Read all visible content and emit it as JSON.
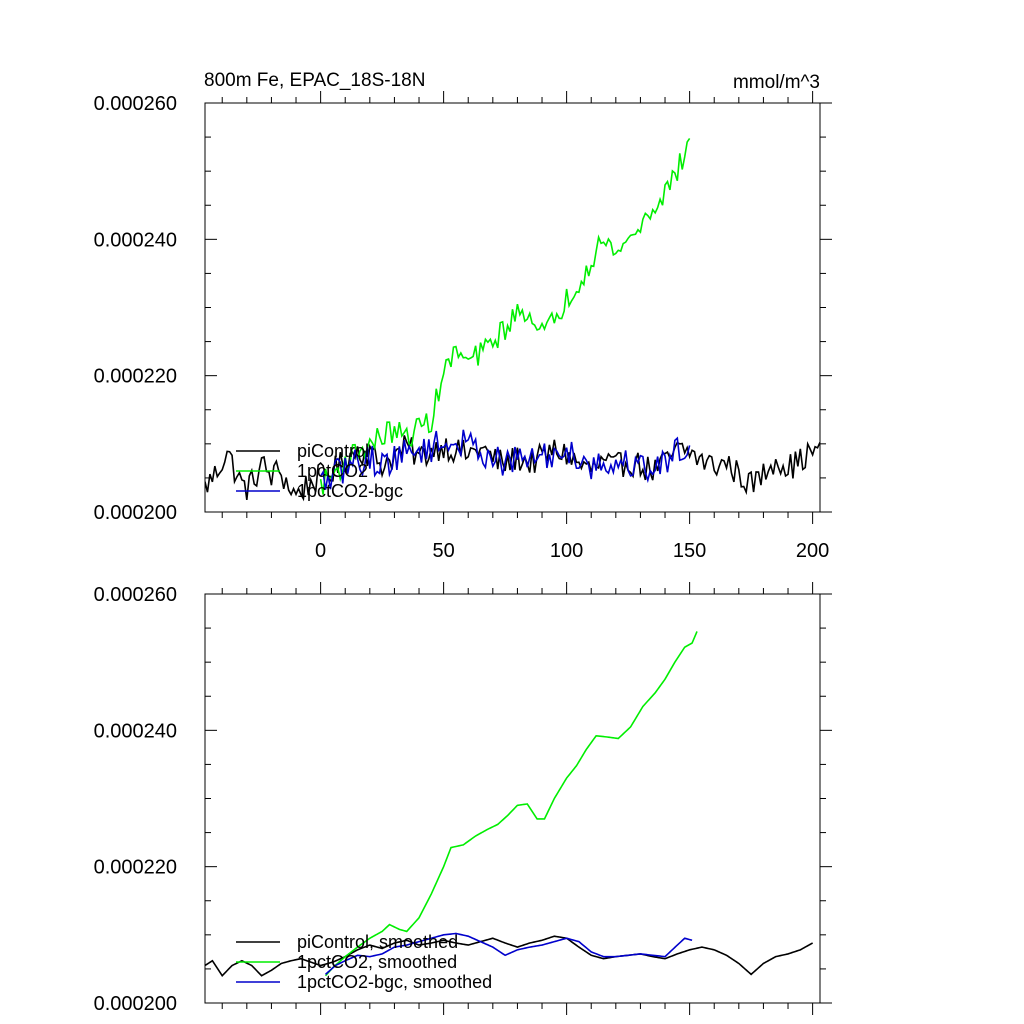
{
  "figure": {
    "title_left": "800m Fe, EPAC_18S-18N",
    "title_right": "mmol/m^3"
  },
  "colors": {
    "piControl": "#000000",
    "1pctCO2": "#00ee00",
    "1pctCO2-bgc": "#0000cc"
  },
  "chart_data": [
    {
      "type": "line",
      "title": "800m Fe, EPAC_18S-18N",
      "units": "mmol/m^3",
      "xlim": [
        -47,
        203
      ],
      "ylim": [
        0.0002,
        0.00026
      ],
      "xticks": [
        0,
        50,
        100,
        150,
        200
      ],
      "xtick_labels": [
        "0",
        "50",
        "100",
        "150",
        "200"
      ],
      "yticks": [
        0.0002,
        0.00022,
        0.00024,
        0.00026
      ],
      "ytick_labels": [
        "0.000200",
        "0.000220",
        "0.000240",
        "0.000260"
      ],
      "legend": [
        "piControl",
        "1pctCO2",
        "1pctCO2-bgc"
      ],
      "legend_position": "lower-left",
      "series": [
        {
          "name": "piControl",
          "anchors": [
            [
              -47,
              0.0002036
            ],
            [
              -42,
              0.000206
            ],
            [
              -38,
              0.000209
            ],
            [
              -35,
              0.0002062
            ],
            [
              -32,
              0.000204
            ],
            [
              -30,
              0.0002035
            ],
            [
              -27,
              0.0002048
            ],
            [
              -24,
              0.000207
            ],
            [
              -20,
              0.0002052
            ],
            [
              -17,
              0.0002062
            ],
            [
              -13,
              0.0002038
            ],
            [
              -10,
              0.0002025
            ],
            [
              -5,
              0.000204
            ],
            [
              0,
              0.0002052
            ],
            [
              5,
              0.000206
            ],
            [
              10,
              0.0002075
            ],
            [
              15,
              0.0002092
            ],
            [
              20,
              0.0002085
            ],
            [
              25,
              0.000207
            ],
            [
              30,
              0.0002082
            ],
            [
              35,
              0.0002096
            ],
            [
              40,
              0.000208
            ],
            [
              45,
              0.000209
            ],
            [
              50,
              0.0002098
            ],
            [
              55,
              0.000209
            ],
            [
              60,
              0.0002084
            ],
            [
              65,
              0.0002095
            ],
            [
              70,
              0.0002078
            ],
            [
              75,
              0.000207
            ],
            [
              80,
              0.000208
            ],
            [
              85,
              0.0002072
            ],
            [
              90,
              0.000208
            ],
            [
              95,
              0.000209
            ],
            [
              100,
              0.0002085
            ],
            [
              105,
              0.000207
            ],
            [
              110,
              0.0002062
            ],
            [
              115,
              0.0002072
            ],
            [
              120,
              0.0002065
            ],
            [
              125,
              0.0002075
            ],
            [
              130,
              0.0002068
            ],
            [
              135,
              0.000206
            ],
            [
              140,
              0.0002072
            ],
            [
              145,
              0.000209
            ],
            [
              150,
              0.0002088
            ],
            [
              155,
              0.0002075
            ],
            [
              160,
              0.0002068
            ],
            [
              165,
              0.0002072
            ],
            [
              170,
              0.0002055
            ],
            [
              175,
              0.000204
            ],
            [
              180,
              0.0002055
            ],
            [
              185,
              0.000208
            ],
            [
              190,
              0.0002065
            ],
            [
              195,
              0.0002075
            ],
            [
              200,
              0.000209
            ],
            [
              203,
              0.0002085
            ]
          ],
          "noise": 2e-06
        },
        {
          "name": "1pctCO2",
          "anchors": [
            [
              0,
              0.000204
            ],
            [
              5,
              0.0002055
            ],
            [
              10,
              0.0002072
            ],
            [
              15,
              0.000209
            ],
            [
              20,
              0.0002098
            ],
            [
              25,
              0.0002112
            ],
            [
              30,
              0.000212
            ],
            [
              35,
              0.0002108
            ],
            [
              40,
              0.0002125
            ],
            [
              45,
              0.0002135
            ],
            [
              50,
              0.0002205
            ],
            [
              55,
              0.0002235
            ],
            [
              60,
              0.000222
            ],
            [
              65,
              0.0002232
            ],
            [
              70,
              0.000225
            ],
            [
              75,
              0.000227
            ],
            [
              80,
              0.000229
            ],
            [
              85,
              0.00023
            ],
            [
              88,
              0.0002262
            ],
            [
              92,
              0.0002265
            ],
            [
              100,
              0.0002312
            ],
            [
              105,
              0.0002338
            ],
            [
              110,
              0.000237
            ],
            [
              113,
              0.0002395
            ],
            [
              118,
              0.0002388
            ],
            [
              122,
              0.0002385
            ],
            [
              130,
              0.000242
            ],
            [
              135,
              0.0002445
            ],
            [
              140,
              0.000247
            ],
            [
              143,
              0.0002488
            ],
            [
              147,
              0.0002515
            ],
            [
              150,
              0.000254
            ],
            [
              150.5,
              0.0002578
            ]
          ],
          "noise": 1.8e-06
        },
        {
          "name": "1pctCO2-bgc",
          "anchors": [
            [
              0,
              0.0002042
            ],
            [
              5,
              0.0002052
            ],
            [
              10,
              0.0002065
            ],
            [
              15,
              0.0002075
            ],
            [
              20,
              0.0002078
            ],
            [
              25,
              0.000207
            ],
            [
              30,
              0.000208
            ],
            [
              35,
              0.0002085
            ],
            [
              40,
              0.0002092
            ],
            [
              45,
              0.0002095
            ],
            [
              50,
              0.00021
            ],
            [
              55,
              0.0002102
            ],
            [
              60,
              0.0002098
            ],
            [
              65,
              0.0002092
            ],
            [
              70,
              0.000208
            ],
            [
              75,
              0.000207
            ],
            [
              80,
              0.0002075
            ],
            [
              85,
              0.0002082
            ],
            [
              90,
              0.0002078
            ],
            [
              95,
              0.0002085
            ],
            [
              100,
              0.000209
            ],
            [
              105,
              0.000208
            ],
            [
              110,
              0.000207
            ],
            [
              115,
              0.0002068
            ],
            [
              120,
              0.000207
            ],
            [
              125,
              0.0002072
            ],
            [
              130,
              0.0002068
            ],
            [
              135,
              0.0002065
            ],
            [
              140,
              0.0002072
            ],
            [
              145,
              0.0002092
            ],
            [
              150,
              0.000209
            ]
          ],
          "noise": 2.2e-06
        }
      ]
    },
    {
      "type": "line",
      "xlim": [
        -47,
        203
      ],
      "ylim": [
        0.0002,
        0.00026
      ],
      "xticks": [
        0,
        50,
        100,
        150,
        200
      ],
      "xtick_labels": [],
      "yticks": [
        0.0002,
        0.00022,
        0.00024,
        0.00026
      ],
      "ytick_labels": [
        "0.000200",
        "0.000220",
        "0.000240",
        "0.000260"
      ],
      "legend": [
        "piControl, smoothed",
        "1pctCO2, smoothed",
        "1pctCO2-bgc, smoothed"
      ],
      "legend_position": "lower-left",
      "series": [
        {
          "name": "piControl, smoothed",
          "anchors": [
            [
              -47,
              0.0002055
            ],
            [
              -44,
              0.0002062
            ],
            [
              -40,
              0.000204
            ],
            [
              -36,
              0.0002055
            ],
            [
              -32,
              0.0002062
            ],
            [
              -28,
              0.0002055
            ],
            [
              -24,
              0.000204
            ],
            [
              -20,
              0.0002048
            ],
            [
              -16,
              0.0002058
            ],
            [
              -12,
              0.0002062
            ],
            [
              -8,
              0.0002065
            ],
            [
              -4,
              0.000206
            ],
            [
              0,
              0.0002055
            ],
            [
              5,
              0.000206
            ],
            [
              10,
              0.0002068
            ],
            [
              15,
              0.0002078
            ],
            [
              20,
              0.0002085
            ],
            [
              25,
              0.000208
            ],
            [
              30,
              0.0002088
            ],
            [
              35,
              0.0002092
            ],
            [
              40,
              0.0002085
            ],
            [
              45,
              0.0002088
            ],
            [
              50,
              0.0002092
            ],
            [
              55,
              0.0002088
            ],
            [
              60,
              0.0002085
            ],
            [
              65,
              0.000209
            ],
            [
              70,
              0.0002095
            ],
            [
              75,
              0.0002088
            ],
            [
              80,
              0.0002082
            ],
            [
              85,
              0.0002088
            ],
            [
              90,
              0.0002092
            ],
            [
              95,
              0.0002098
            ],
            [
              100,
              0.0002095
            ],
            [
              105,
              0.0002082
            ],
            [
              110,
              0.000207
            ],
            [
              115,
              0.0002065
            ],
            [
              120,
              0.0002068
            ],
            [
              125,
              0.000207
            ],
            [
              130,
              0.0002072
            ],
            [
              135,
              0.0002068
            ],
            [
              140,
              0.0002065
            ],
            [
              145,
              0.0002072
            ],
            [
              150,
              0.0002078
            ],
            [
              155,
              0.0002082
            ],
            [
              160,
              0.0002078
            ],
            [
              165,
              0.000207
            ],
            [
              170,
              0.0002058
            ],
            [
              175,
              0.0002042
            ],
            [
              180,
              0.0002058
            ],
            [
              185,
              0.0002068
            ],
            [
              190,
              0.0002072
            ],
            [
              195,
              0.0002078
            ],
            [
              200,
              0.0002088
            ]
          ]
        },
        {
          "name": "1pctCO2, smoothed",
          "anchors": [
            [
              2,
              0.000204
            ],
            [
              5,
              0.0002052
            ],
            [
              10,
              0.0002068
            ],
            [
              15,
              0.0002082
            ],
            [
              20,
              0.0002095
            ],
            [
              25,
              0.0002105
            ],
            [
              28,
              0.0002115
            ],
            [
              32,
              0.0002108
            ],
            [
              35,
              0.0002105
            ],
            [
              40,
              0.0002125
            ],
            [
              45,
              0.000216
            ],
            [
              50,
              0.00022
            ],
            [
              53,
              0.0002228
            ],
            [
              58,
              0.0002232
            ],
            [
              63,
              0.0002245
            ],
            [
              68,
              0.0002255
            ],
            [
              72,
              0.0002262
            ],
            [
              76,
              0.0002275
            ],
            [
              80,
              0.000229
            ],
            [
              84,
              0.0002292
            ],
            [
              88,
              0.000227
            ],
            [
              91,
              0.000227
            ],
            [
              95,
              0.00023
            ],
            [
              100,
              0.000233
            ],
            [
              104,
              0.0002348
            ],
            [
              108,
              0.0002372
            ],
            [
              112,
              0.0002392
            ],
            [
              117,
              0.000239
            ],
            [
              121,
              0.0002388
            ],
            [
              126,
              0.0002405
            ],
            [
              131,
              0.0002435
            ],
            [
              136,
              0.0002455
            ],
            [
              140,
              0.0002475
            ],
            [
              144,
              0.00025
            ],
            [
              148,
              0.0002522
            ],
            [
              151,
              0.0002528
            ],
            [
              153,
              0.0002545
            ]
          ]
        },
        {
          "name": "1pctCO2-bgc, smoothed",
          "anchors": [
            [
              2,
              0.0002042
            ],
            [
              6,
              0.0002055
            ],
            [
              10,
              0.0002062
            ],
            [
              15,
              0.000207
            ],
            [
              20,
              0.0002068
            ],
            [
              25,
              0.0002072
            ],
            [
              30,
              0.0002082
            ],
            [
              35,
              0.0002085
            ],
            [
              40,
              0.000209
            ],
            [
              45,
              0.0002095
            ],
            [
              50,
              0.00021
            ],
            [
              55,
              0.0002102
            ],
            [
              60,
              0.0002098
            ],
            [
              65,
              0.000209
            ],
            [
              70,
              0.0002082
            ],
            [
              75,
              0.000207
            ],
            [
              80,
              0.0002078
            ],
            [
              85,
              0.0002082
            ],
            [
              90,
              0.0002085
            ],
            [
              95,
              0.000209
            ],
            [
              100,
              0.0002095
            ],
            [
              105,
              0.000209
            ],
            [
              110,
              0.0002075
            ],
            [
              115,
              0.0002068
            ],
            [
              120,
              0.0002068
            ],
            [
              125,
              0.000207
            ],
            [
              130,
              0.0002072
            ],
            [
              135,
              0.000207
            ],
            [
              140,
              0.0002068
            ],
            [
              145,
              0.0002085
            ],
            [
              148,
              0.0002095
            ],
            [
              151,
              0.0002092
            ]
          ]
        }
      ]
    }
  ]
}
